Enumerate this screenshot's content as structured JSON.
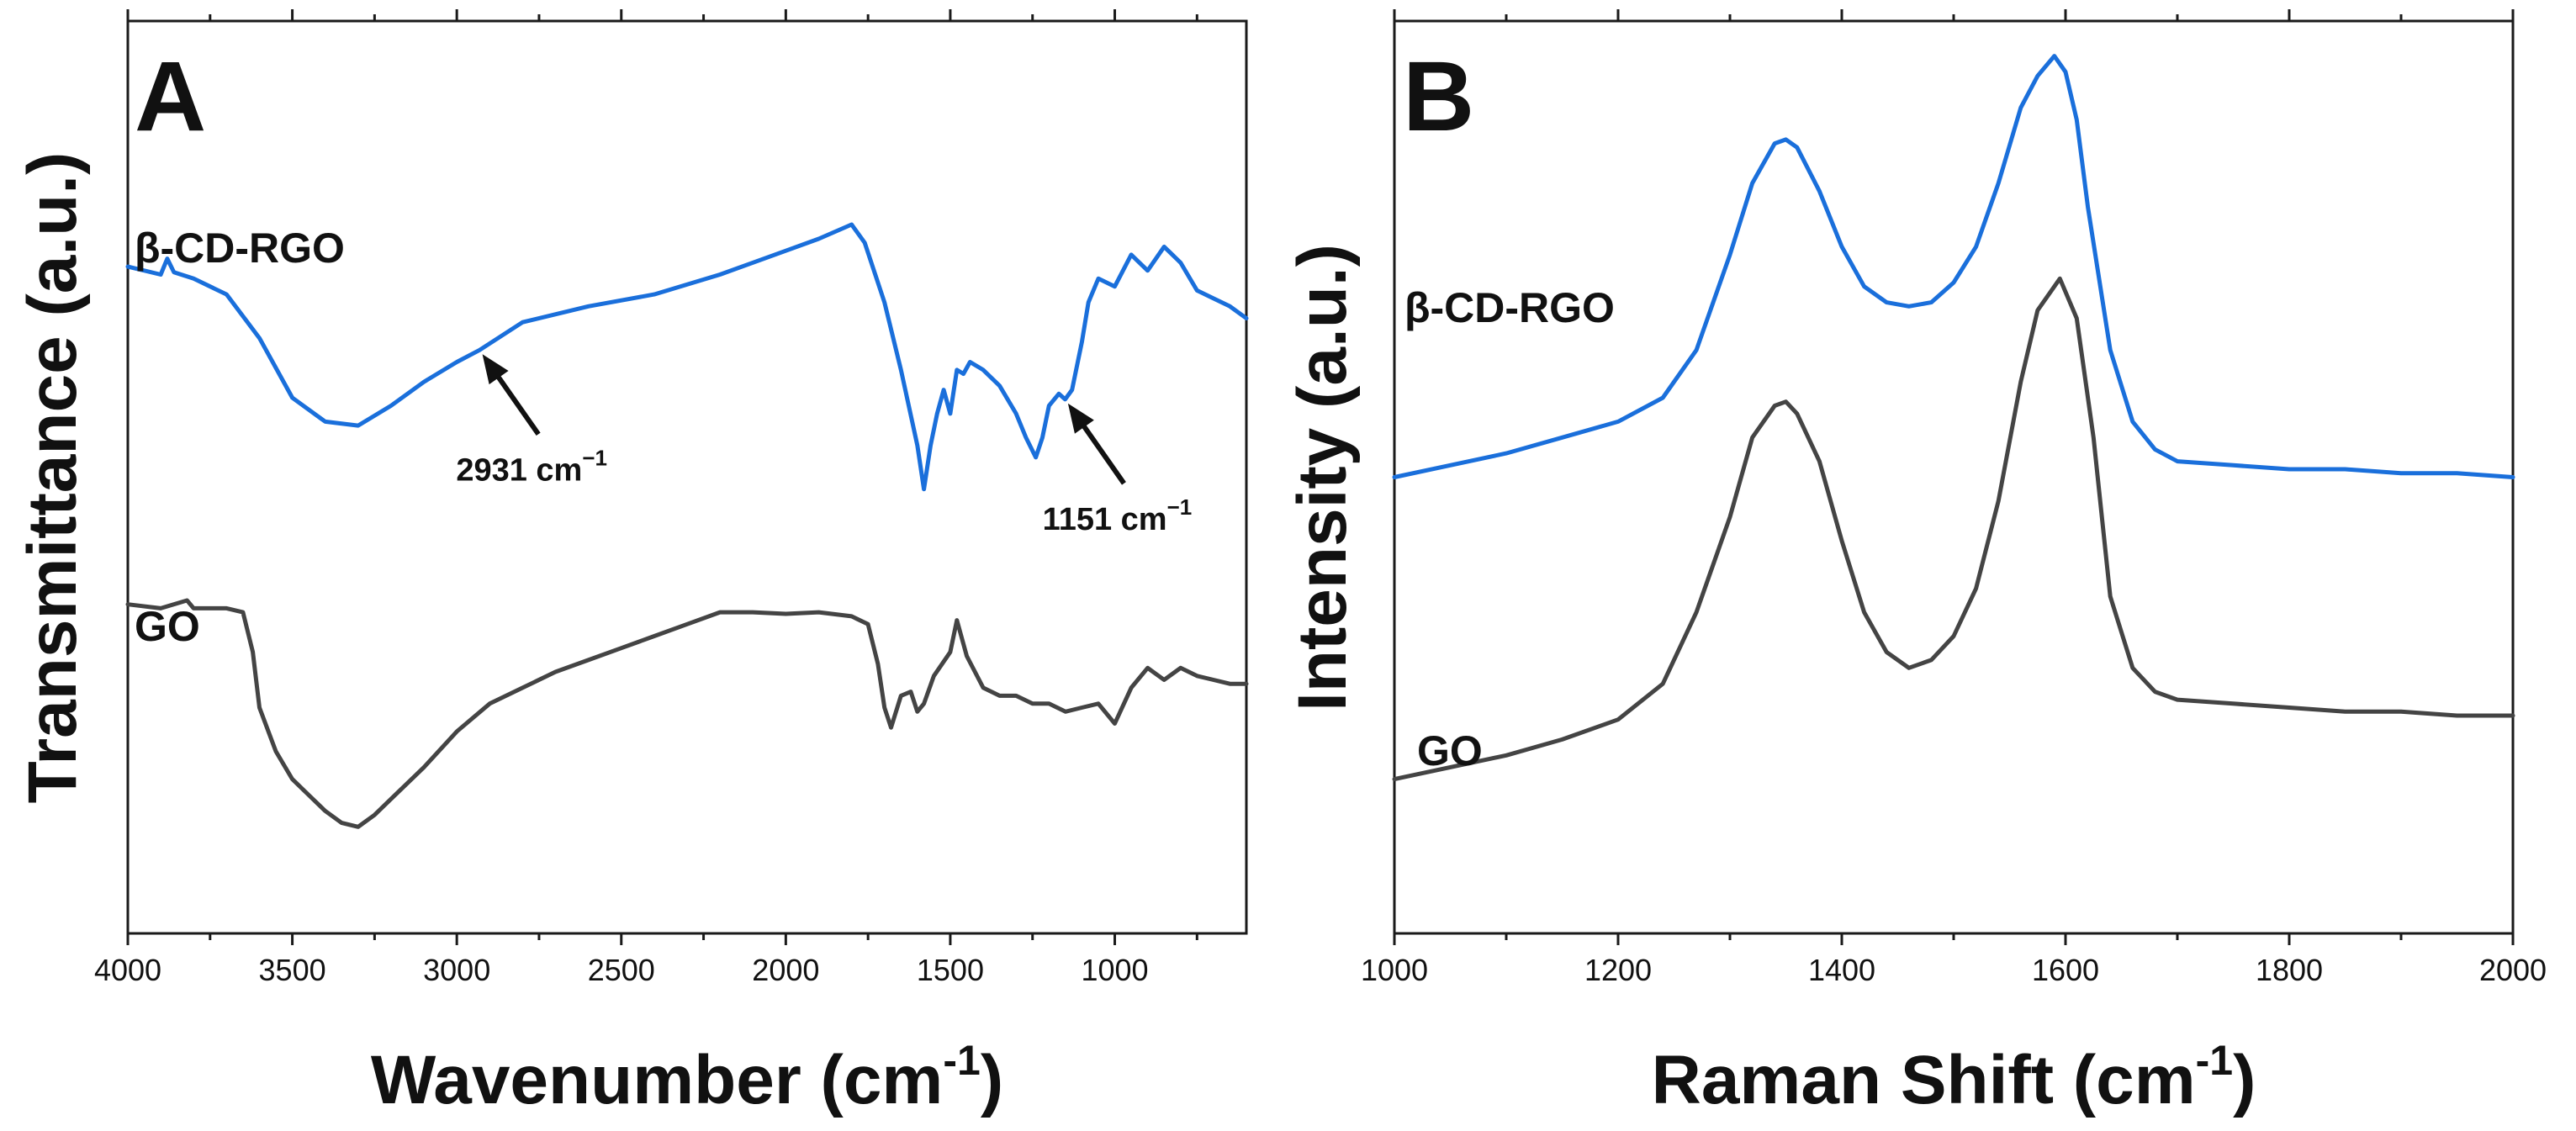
{
  "chart_data": [
    {
      "panel": "A",
      "type": "line",
      "xlabel": "Wavenumber (cm",
      "xlabel_sup": "-1",
      "xlabel_close": ")",
      "ylabel": "Transmittance (a.u.)",
      "xlim": [
        4000,
        600
      ],
      "ylim": [
        0,
        100
      ],
      "xticks": [
        4000,
        3500,
        3000,
        2500,
        2000,
        1500,
        1000
      ],
      "minor_xticks": [
        3750,
        3250,
        2750,
        2250,
        1750,
        1250,
        750
      ],
      "yticks_shown": false,
      "series": [
        {
          "name": "β-CD-RGO",
          "color": "#1a6fdb",
          "x": [
            4000,
            3900,
            3880,
            3860,
            3800,
            3700,
            3600,
            3500,
            3400,
            3300,
            3200,
            3100,
            3000,
            2931,
            2800,
            2600,
            2400,
            2200,
            2000,
            1900,
            1800,
            1760,
            1700,
            1650,
            1600,
            1580,
            1560,
            1540,
            1520,
            1500,
            1480,
            1460,
            1440,
            1400,
            1350,
            1300,
            1270,
            1240,
            1220,
            1200,
            1170,
            1151,
            1130,
            1100,
            1080,
            1050,
            1000,
            950,
            900,
            850,
            800,
            750,
            700,
            650,
            600
          ],
          "y": [
            76.5,
            75.5,
            77.5,
            75.8,
            75.0,
            73.0,
            67.5,
            60.0,
            57.0,
            56.5,
            59.0,
            62.0,
            64.5,
            66.0,
            69.5,
            71.5,
            73.0,
            75.5,
            78.5,
            80.0,
            81.8,
            79.5,
            72.0,
            63.5,
            54.0,
            48.5,
            54.0,
            58.0,
            61.0,
            58.0,
            63.5,
            63.0,
            64.5,
            63.5,
            61.5,
            58.0,
            55.0,
            52.5,
            55.0,
            59.0,
            60.5,
            59.8,
            61.0,
            67.0,
            72.0,
            75.0,
            74.0,
            78.0,
            76.0,
            79.0,
            77.0,
            73.5,
            72.5,
            71.5,
            70.0
          ]
        },
        {
          "name": "GO",
          "color": "#444444",
          "x": [
            4000,
            3900,
            3820,
            3800,
            3700,
            3650,
            3620,
            3600,
            3550,
            3500,
            3450,
            3400,
            3350,
            3300,
            3250,
            3200,
            3100,
            3000,
            2900,
            2800,
            2700,
            2600,
            2500,
            2400,
            2300,
            2200,
            2100,
            2000,
            1900,
            1800,
            1750,
            1720,
            1700,
            1680,
            1650,
            1620,
            1600,
            1580,
            1550,
            1500,
            1480,
            1450,
            1400,
            1350,
            1300,
            1250,
            1200,
            1150,
            1100,
            1050,
            1000,
            950,
            900,
            850,
            800,
            750,
            700,
            650,
            600
          ],
          "y": [
            34.0,
            33.5,
            34.5,
            33.5,
            33.5,
            33.0,
            28.0,
            21.0,
            15.5,
            12.0,
            10.0,
            8.0,
            6.5,
            6.0,
            7.5,
            9.5,
            13.5,
            18.0,
            21.5,
            23.5,
            25.5,
            27.0,
            28.5,
            30.0,
            31.5,
            33.0,
            33.0,
            32.8,
            33.0,
            32.5,
            31.5,
            26.5,
            21.0,
            18.5,
            22.5,
            23.0,
            20.5,
            21.5,
            25.0,
            28.0,
            32.0,
            27.5,
            23.5,
            22.5,
            22.5,
            21.5,
            21.5,
            20.5,
            21.0,
            21.5,
            19.0,
            23.5,
            26.0,
            24.5,
            26.0,
            25.0,
            24.5,
            24.0,
            24.0
          ]
        }
      ],
      "annotations": [
        {
          "label": "2931 cm",
          "sup": "−1",
          "target_x": 2931,
          "target_y": 66.0
        },
        {
          "label": "1151 cm",
          "sup": "−1",
          "target_x": 1151,
          "target_y": 59.8
        }
      ]
    },
    {
      "panel": "B",
      "type": "line",
      "xlabel": "Raman Shift (cm",
      "xlabel_sup": "-1",
      "xlabel_close": ")",
      "ylabel": "Intensity (a.u.)",
      "xlim": [
        1000,
        2000
      ],
      "ylim": [
        0,
        100
      ],
      "xticks": [
        1000,
        1200,
        1400,
        1600,
        1800,
        2000
      ],
      "minor_xticks": [
        1100,
        1300,
        1500,
        1700,
        1900
      ],
      "yticks_shown": false,
      "series": [
        {
          "name": "β-CD-RGO",
          "color": "#1a6fdb",
          "x": [
            1000,
            1050,
            1100,
            1150,
            1200,
            1240,
            1270,
            1300,
            1320,
            1340,
            1350,
            1360,
            1380,
            1400,
            1420,
            1440,
            1460,
            1480,
            1500,
            1520,
            1540,
            1560,
            1575,
            1590,
            1600,
            1610,
            1620,
            1640,
            1660,
            1680,
            1700,
            1750,
            1800,
            1850,
            1900,
            1950,
            2000
          ],
          "y": [
            50.0,
            51.5,
            53.0,
            55.0,
            57.0,
            60.0,
            66.0,
            78.0,
            87.0,
            92.0,
            92.5,
            91.5,
            86.0,
            79.0,
            74.0,
            72.0,
            71.5,
            72.0,
            74.5,
            79.0,
            87.0,
            96.5,
            100.5,
            103.0,
            101.0,
            95.0,
            84.0,
            66.0,
            57.0,
            53.5,
            52.0,
            51.5,
            51.0,
            51.0,
            50.5,
            50.5,
            50.0
          ]
        },
        {
          "name": "GO",
          "color": "#444444",
          "x": [
            1000,
            1050,
            1100,
            1150,
            1200,
            1240,
            1270,
            1300,
            1320,
            1340,
            1350,
            1360,
            1380,
            1400,
            1420,
            1440,
            1460,
            1480,
            1500,
            1520,
            1540,
            1560,
            1575,
            1595,
            1610,
            1625,
            1640,
            1660,
            1680,
            1700,
            1750,
            1800,
            1850,
            1900,
            1950,
            2000
          ],
          "y": [
            12.0,
            13.5,
            15.0,
            17.0,
            19.5,
            24.0,
            33.0,
            45.0,
            55.0,
            59.0,
            59.5,
            58.0,
            52.0,
            42.0,
            33.0,
            28.0,
            26.0,
            27.0,
            30.0,
            36.0,
            47.0,
            62.0,
            71.0,
            75.0,
            70.0,
            55.0,
            35.0,
            26.0,
            23.0,
            22.0,
            21.5,
            21.0,
            20.5,
            20.5,
            20.0,
            20.0
          ]
        }
      ],
      "annotations": []
    }
  ]
}
